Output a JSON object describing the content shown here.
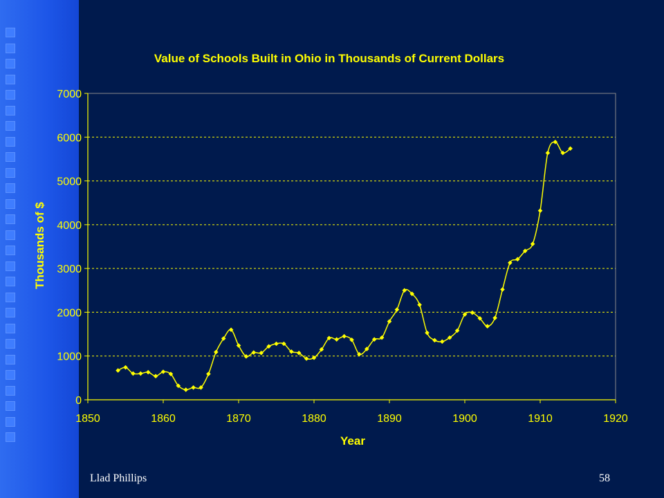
{
  "colors": {
    "background": "#001a4d",
    "sidebar": "#1d56e8",
    "series": "#ffff00",
    "text": "#ffff00",
    "grid": "#ffff00"
  },
  "footer": {
    "author": "Llad Phillips",
    "page_number": "58"
  },
  "chart_data": {
    "type": "line",
    "title": "Value of Schools Built in Ohio in Thousands of Current Dollars",
    "xlabel": "Year",
    "ylabel": "Thousands of $",
    "xlim": [
      1850,
      1920
    ],
    "ylim": [
      0,
      7000
    ],
    "xticks": [
      1850,
      1860,
      1870,
      1880,
      1890,
      1900,
      1910,
      1920
    ],
    "yticks": [
      0,
      1000,
      2000,
      3000,
      4000,
      5000,
      6000,
      7000
    ],
    "grid": "horizontal dashed",
    "marker": "diamond",
    "smooth": true,
    "series": [
      {
        "x": [
          1854,
          1855,
          1856,
          1857,
          1858,
          1859,
          1860,
          1861,
          1862,
          1863,
          1864,
          1865,
          1866,
          1867,
          1868,
          1869,
          1870,
          1871,
          1872,
          1873,
          1874,
          1875,
          1876,
          1877,
          1878,
          1879,
          1880,
          1881,
          1882,
          1883,
          1884,
          1885,
          1886,
          1887,
          1888,
          1889,
          1890,
          1891,
          1892,
          1893,
          1894,
          1895,
          1896,
          1897,
          1898,
          1899,
          1900,
          1901,
          1902,
          1903,
          1904,
          1905,
          1906,
          1907,
          1908,
          1909,
          1910,
          1911,
          1912,
          1913,
          1914
        ],
        "y": [
          670,
          740,
          600,
          600,
          630,
          540,
          640,
          590,
          320,
          230,
          280,
          280,
          590,
          1090,
          1400,
          1600,
          1240,
          990,
          1080,
          1070,
          1220,
          1280,
          1280,
          1100,
          1070,
          940,
          960,
          1150,
          1410,
          1380,
          1450,
          1370,
          1040,
          1160,
          1380,
          1420,
          1790,
          2060,
          2500,
          2420,
          2170,
          1530,
          1360,
          1330,
          1420,
          1580,
          1950,
          1990,
          1860,
          1680,
          1870,
          2520,
          3130,
          3210,
          3400,
          3560,
          4320,
          5640,
          5890,
          5640,
          5740
        ]
      }
    ]
  }
}
